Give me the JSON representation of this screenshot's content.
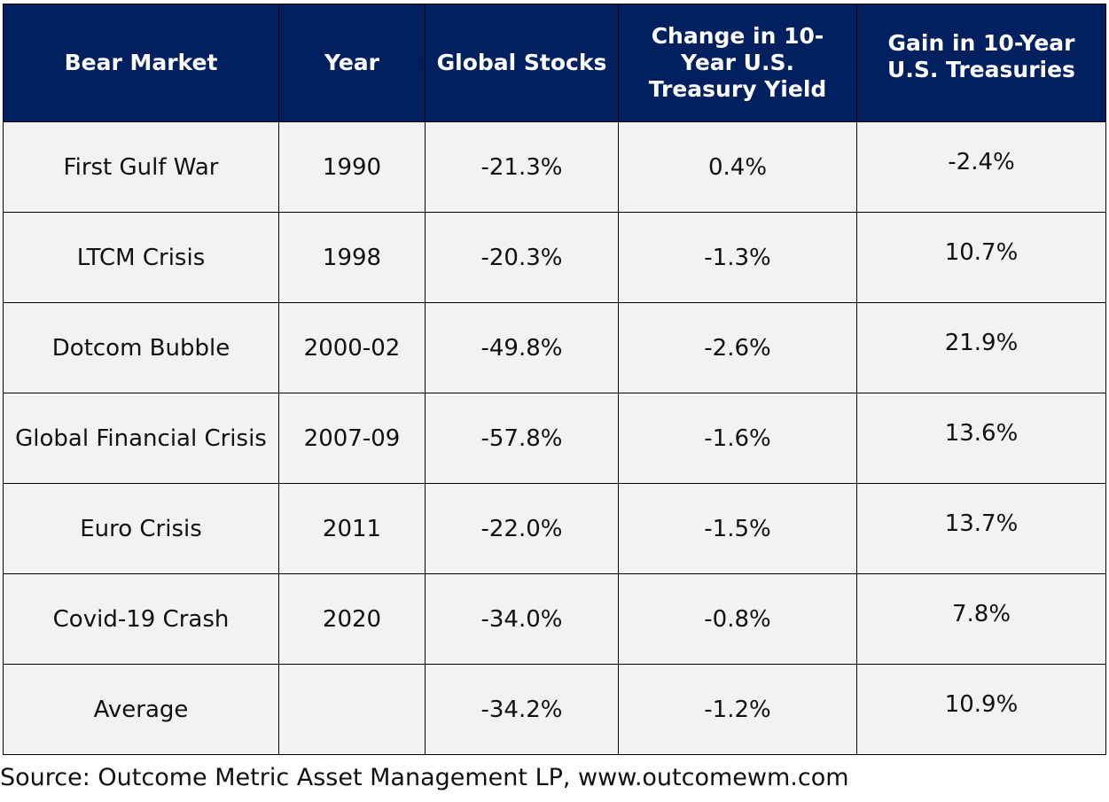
{
  "table": {
    "headers": [
      "Bear Market",
      "Year",
      "Global Stocks",
      "Change in 10-Year U.S. Treasury Yield",
      "Gain in 10-Year U.S. Treasuries"
    ],
    "rows": [
      [
        "First Gulf War",
        "1990",
        "-21.3%",
        "0.4%",
        "-2.4%"
      ],
      [
        "LTCM Crisis",
        "1998",
        "-20.3%",
        "-1.3%",
        "10.7%"
      ],
      [
        "Dotcom Bubble",
        "2000-02",
        "-49.8%",
        "-2.6%",
        "21.9%"
      ],
      [
        "Global Financial Crisis",
        "2007-09",
        "-57.8%",
        "-1.6%",
        "13.6%"
      ],
      [
        "Euro Crisis",
        "2011",
        "-22.0%",
        "-1.5%",
        "13.7%"
      ],
      [
        "Covid-19 Crash",
        "2020",
        "-34.0%",
        "-0.8%",
        "7.8%"
      ],
      [
        "Average",
        "",
        "-34.2%",
        "-1.2%",
        "10.9%"
      ]
    ]
  },
  "source": "Source: Outcome Metric Asset Management LP, www.outcomewm.com",
  "colors": {
    "header_background": "#002060",
    "header_text": "#ffffff",
    "cell_background": "#f2f2f2"
  }
}
